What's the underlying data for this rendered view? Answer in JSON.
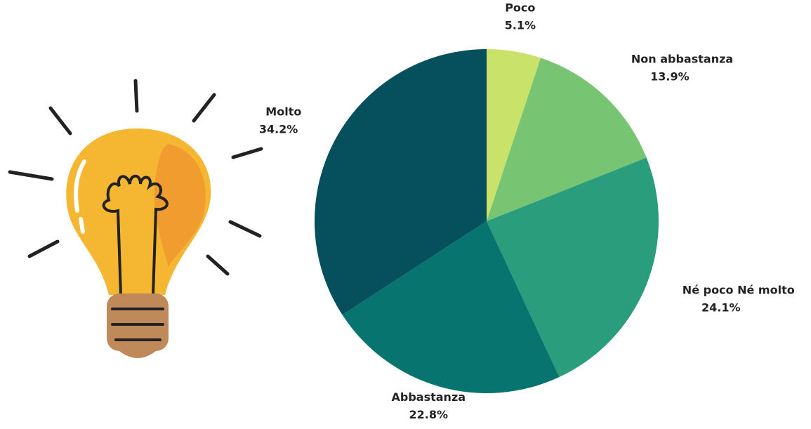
{
  "chart_data": {
    "type": "pie",
    "categories": [
      "Poco",
      "Non abbastanza",
      "Né poco Né molto",
      "Abbastanza",
      "Molto"
    ],
    "values": [
      5.1,
      13.9,
      24.1,
      22.8,
      34.2
    ],
    "value_labels": [
      "5.1%",
      "13.9%",
      "24.1%",
      "22.8%",
      "34.2%"
    ],
    "colors": [
      "#c9e26a",
      "#77c573",
      "#2a9d7d",
      "#07746f",
      "#064f5c"
    ]
  }
}
